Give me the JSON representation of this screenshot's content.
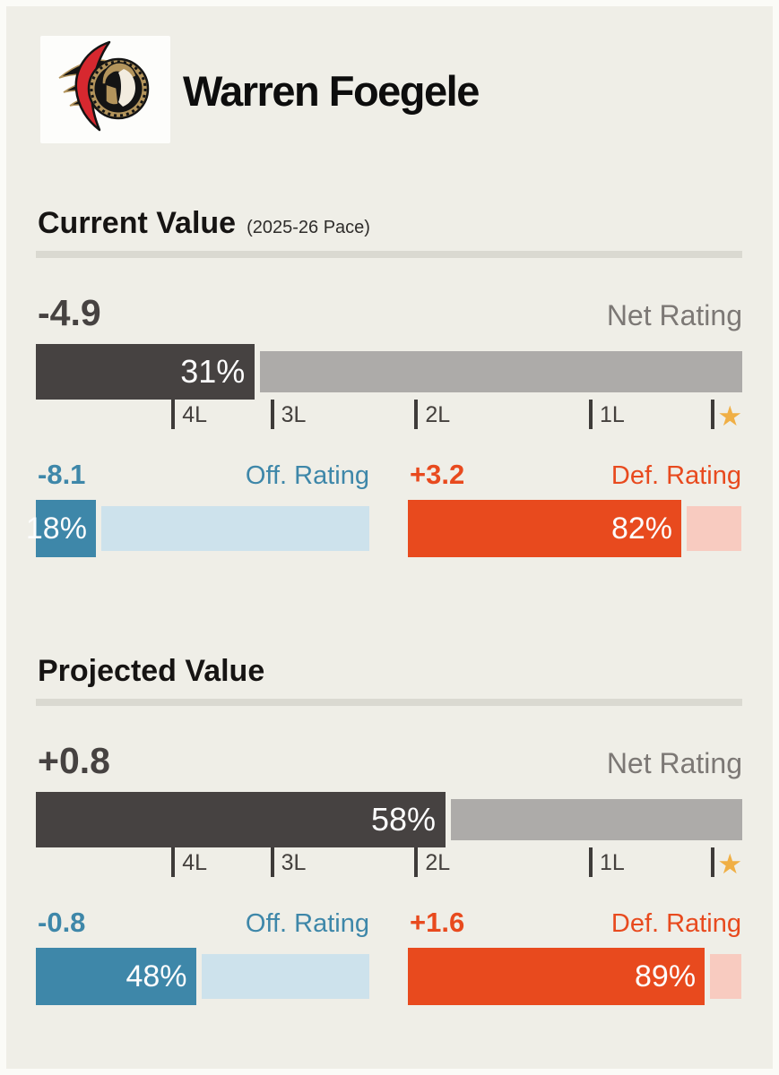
{
  "colors": {
    "bg": "#EFEEE7",
    "frame": "#FBFBF7",
    "dark": "#464241",
    "gray": "#ADABA9",
    "blue": "#3E87A9",
    "blueLight": "#CDE2EC",
    "orange": "#E84A1E",
    "orangeLight": "#F8CBC0",
    "star": "#F0AF45",
    "netLabel": "#7C7875",
    "tick": "#3E3B39",
    "divider": "#DAD9D1",
    "heading": "#161413",
    "name": "#0D0D0D"
  },
  "player": {
    "name": "Warren Foegele",
    "logo": "ottawa-senators-logo"
  },
  "axis": {
    "ticks": [
      {
        "label": "4L",
        "pct": 19.2
      },
      {
        "label": "3L",
        "pct": 33.2
      },
      {
        "label": "2L",
        "pct": 53.6
      },
      {
        "label": "1L",
        "pct": 78.3
      },
      {
        "label": "★",
        "pct": 95.6,
        "star": true
      }
    ]
  },
  "sections": [
    {
      "title": "Current Value",
      "subtitle": "(2025-26 Pace)",
      "net": {
        "value": "-4.9",
        "label": "Net Rating",
        "pct": 31,
        "pct_label": "31%"
      },
      "off": {
        "value": "-8.1",
        "label": "Off. Rating",
        "pct": 18,
        "pct_label": "18%"
      },
      "def": {
        "value": "+3.2",
        "label": "Def. Rating",
        "pct": 82,
        "pct_label": "82%"
      }
    },
    {
      "title": "Projected Value",
      "subtitle": "",
      "net": {
        "value": "+0.8",
        "label": "Net Rating",
        "pct": 58,
        "pct_label": "58%"
      },
      "off": {
        "value": "-0.8",
        "label": "Off. Rating",
        "pct": 48,
        "pct_label": "48%"
      },
      "def": {
        "value": "+1.6",
        "label": "Def. Rating",
        "pct": 89,
        "pct_label": "89%"
      }
    }
  ],
  "chart_data": [
    {
      "type": "bar",
      "title": "Current Value (2025-26 Pace)",
      "categories": [
        "Net Rating",
        "Off. Rating",
        "Def. Rating"
      ],
      "series": [
        {
          "name": "rating_value",
          "values": [
            -4.9,
            -8.1,
            3.2
          ]
        },
        {
          "name": "percentile",
          "values": [
            31,
            18,
            82
          ]
        }
      ],
      "xlim": [
        0,
        100
      ],
      "axis_tick_labels": [
        "4L",
        "3L",
        "2L",
        "1L",
        "★"
      ],
      "axis_tick_percents": [
        19.2,
        33.2,
        53.6,
        78.3,
        95.6
      ],
      "legend": "off",
      "grid": "off"
    },
    {
      "type": "bar",
      "title": "Projected Value",
      "categories": [
        "Net Rating",
        "Off. Rating",
        "Def. Rating"
      ],
      "series": [
        {
          "name": "rating_value",
          "values": [
            0.8,
            -0.8,
            1.6
          ]
        },
        {
          "name": "percentile",
          "values": [
            58,
            48,
            89
          ]
        }
      ],
      "xlim": [
        0,
        100
      ],
      "axis_tick_labels": [
        "4L",
        "3L",
        "2L",
        "1L",
        "★"
      ],
      "axis_tick_percents": [
        19.2,
        33.2,
        53.6,
        78.3,
        95.6
      ],
      "legend": "off",
      "grid": "off"
    }
  ]
}
